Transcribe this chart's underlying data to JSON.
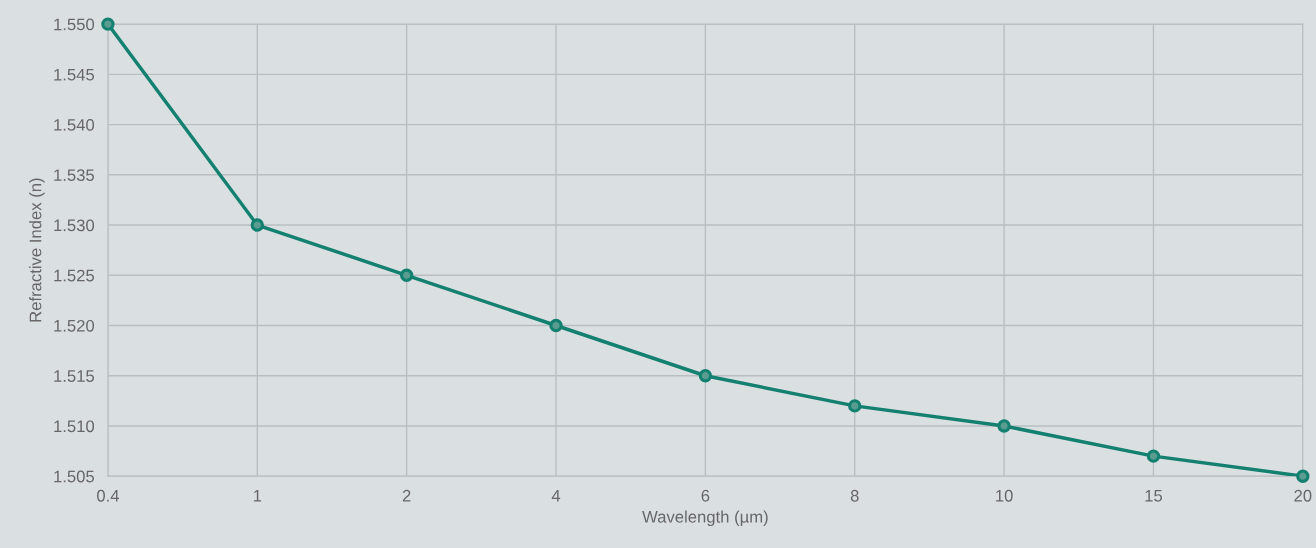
{
  "chart_data": {
    "type": "line",
    "xlabel": "Wavelength (µm)",
    "ylabel": "Refractive Index (n)",
    "categories": [
      "0.4",
      "1",
      "2",
      "4",
      "6",
      "8",
      "10",
      "15",
      "20"
    ],
    "series": [
      {
        "color": "#138070",
        "values": [
          1.55,
          1.53,
          1.525,
          1.52,
          1.515,
          1.512,
          1.51,
          1.507,
          1.505
        ]
      }
    ],
    "ylim": [
      1.505,
      1.55
    ],
    "yticks": [
      {
        "value": 1.505,
        "label": "1.505"
      },
      {
        "value": 1.51,
        "label": "1.510"
      },
      {
        "value": 1.515,
        "label": "1.515"
      },
      {
        "value": 1.52,
        "label": "1.520"
      },
      {
        "value": 1.525,
        "label": "1.525"
      },
      {
        "value": 1.53,
        "label": "1.530"
      },
      {
        "value": 1.535,
        "label": "1.535"
      },
      {
        "value": 1.54,
        "label": "1.540"
      },
      {
        "value": 1.545,
        "label": "1.545"
      },
      {
        "value": 1.55,
        "label": "1.550"
      }
    ],
    "grid": true,
    "marker": "circle",
    "line_style": "solid"
  }
}
